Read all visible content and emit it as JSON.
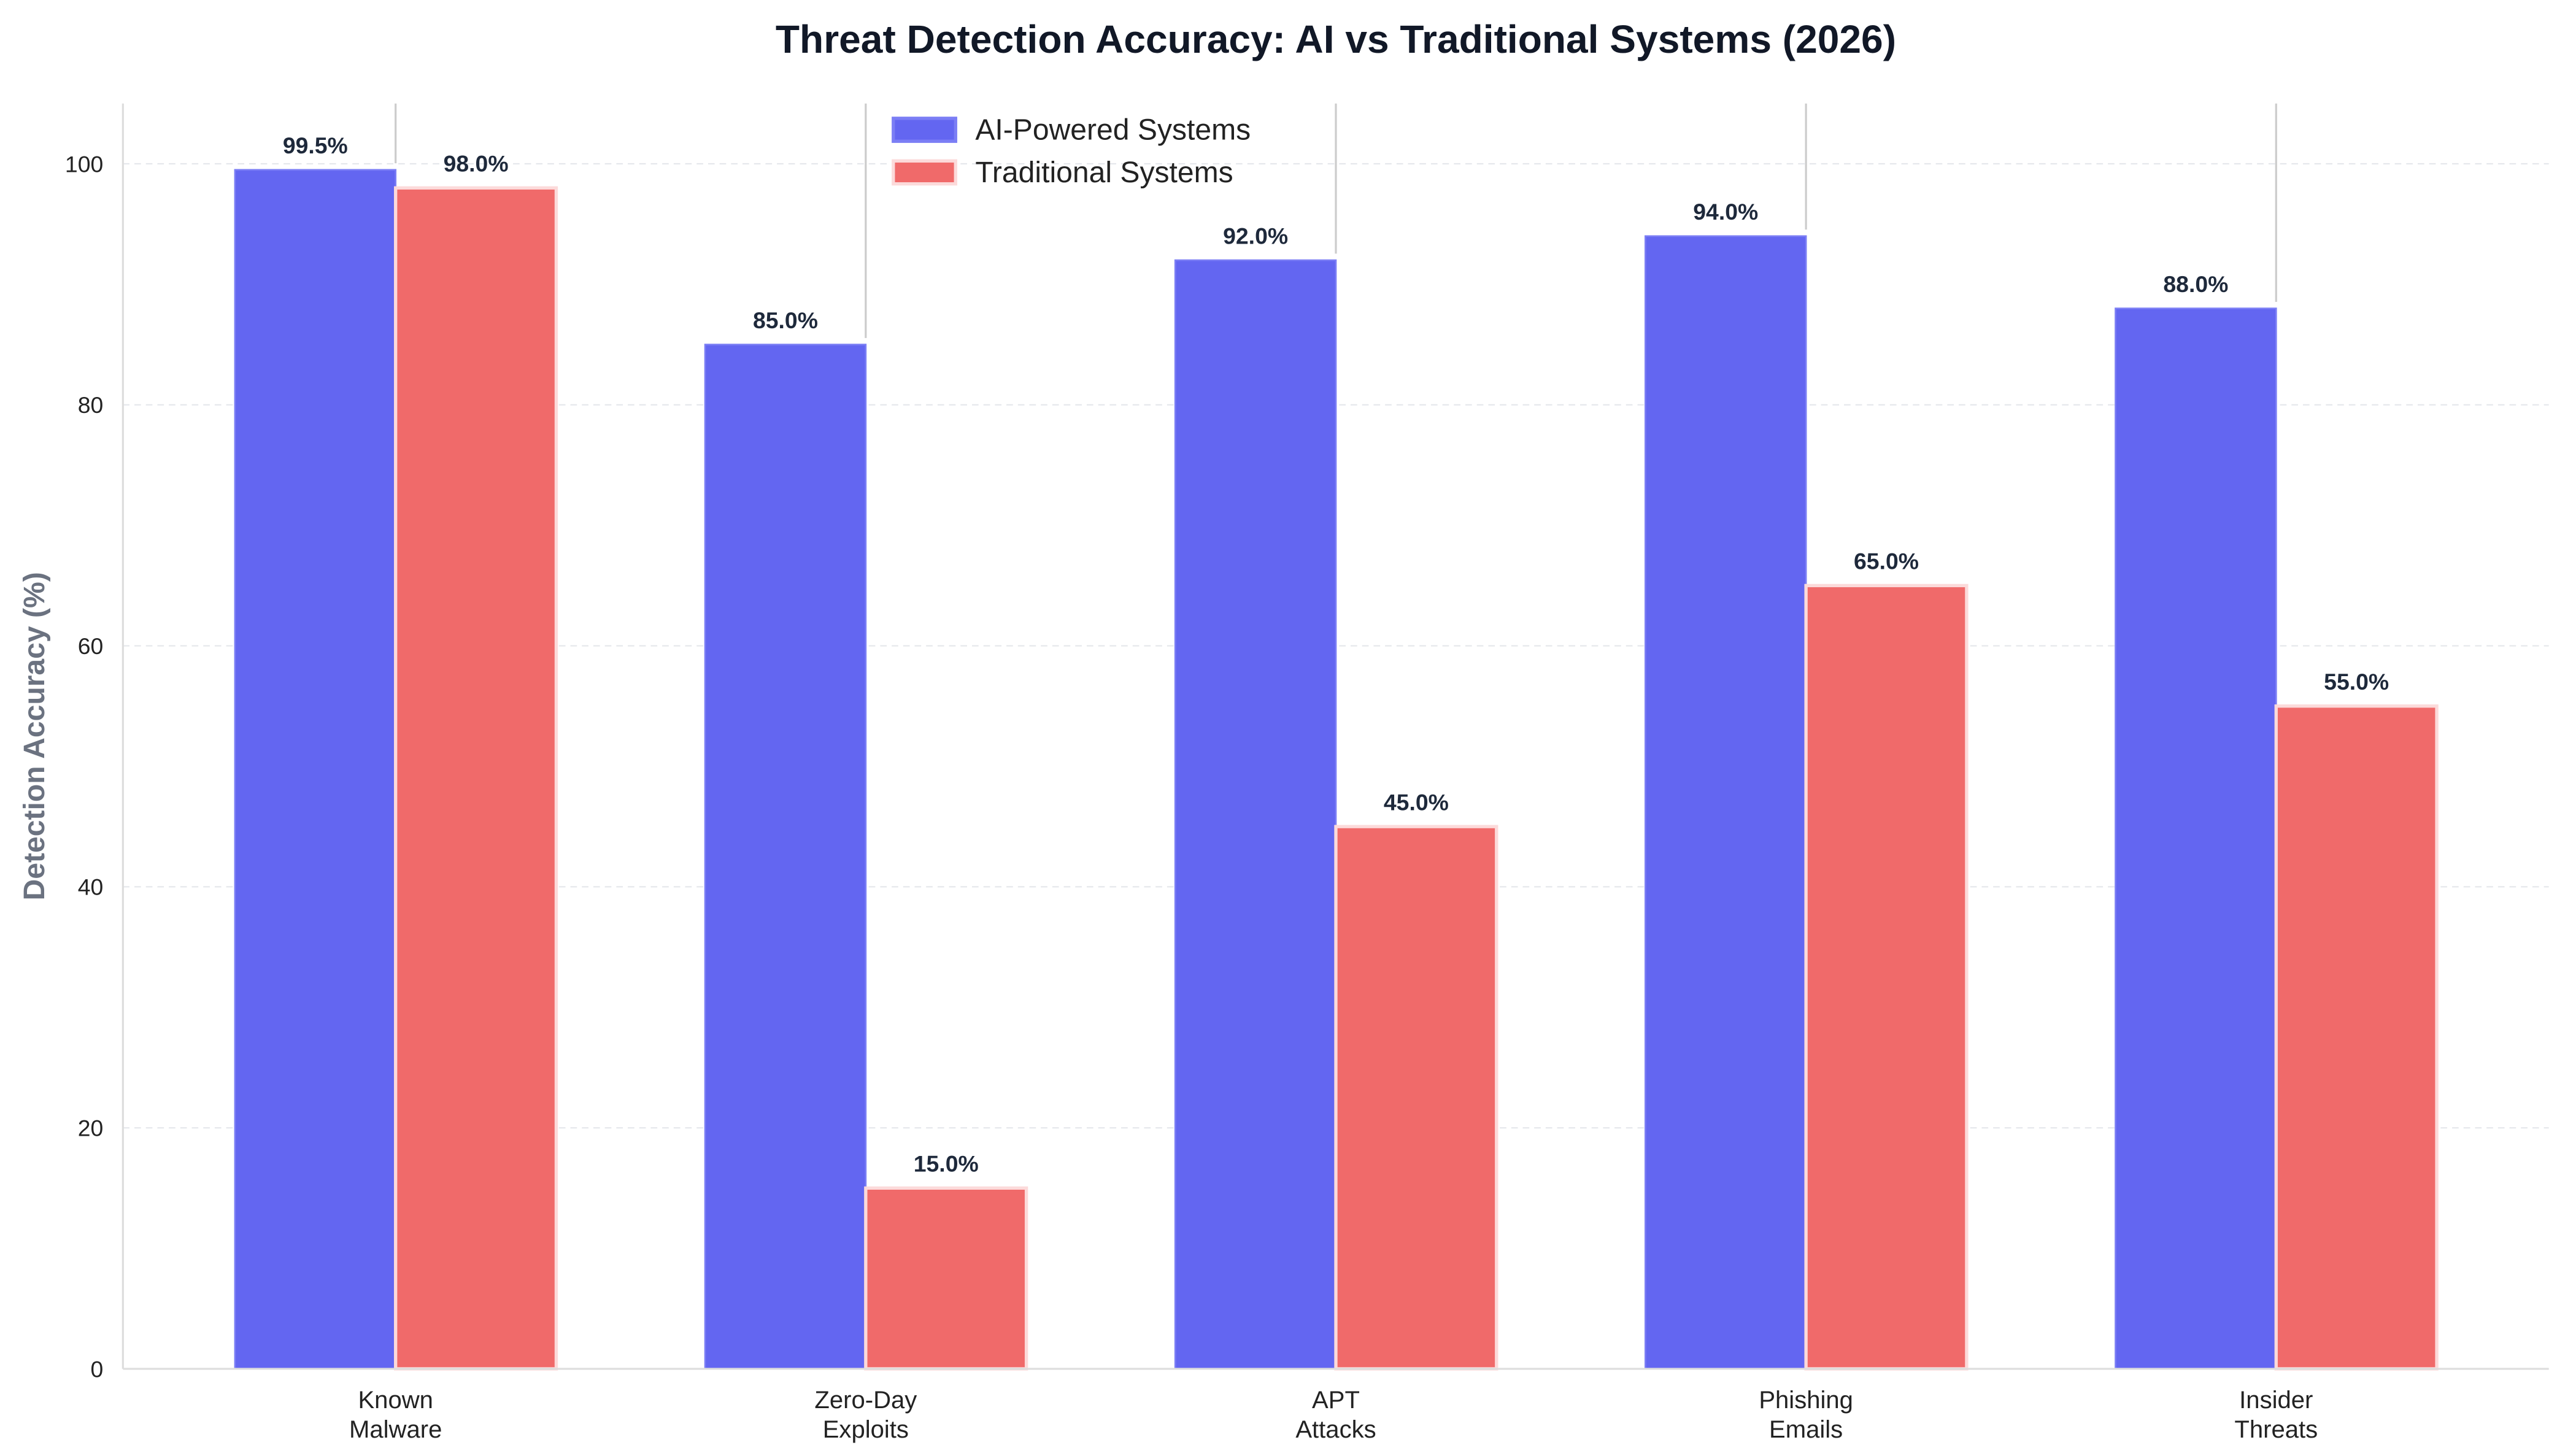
{
  "chart_data": {
    "type": "bar",
    "title": "Threat Detection Accuracy: AI vs Traditional Systems (2026)",
    "xlabel": "",
    "ylabel": "Detection Accuracy (%)",
    "ylim": [
      0,
      105
    ],
    "yticks": [
      0,
      20,
      40,
      60,
      80,
      100
    ],
    "grid": true,
    "legend_placement": "top-left",
    "categories": [
      [
        "Known",
        "Malware"
      ],
      [
        "Zero-Day",
        "Exploits"
      ],
      [
        "APT",
        "Attacks"
      ],
      [
        "Phishing",
        "Emails"
      ],
      [
        "Insider",
        "Threats"
      ]
    ],
    "series": [
      {
        "name": "AI-Powered Systems",
        "color": "#6366F1",
        "values": [
          99.5,
          85.0,
          92.0,
          94.0,
          88.0
        ],
        "labels": [
          "99.5%",
          "85.0%",
          "92.0%",
          "94.0%",
          "88.0%"
        ]
      },
      {
        "name": "Traditional Systems",
        "color": "#F06A6A",
        "values": [
          98.0,
          15.0,
          45.0,
          65.0,
          55.0
        ],
        "labels": [
          "98.0%",
          "15.0%",
          "45.0%",
          "65.0%",
          "55.0%"
        ]
      }
    ]
  }
}
